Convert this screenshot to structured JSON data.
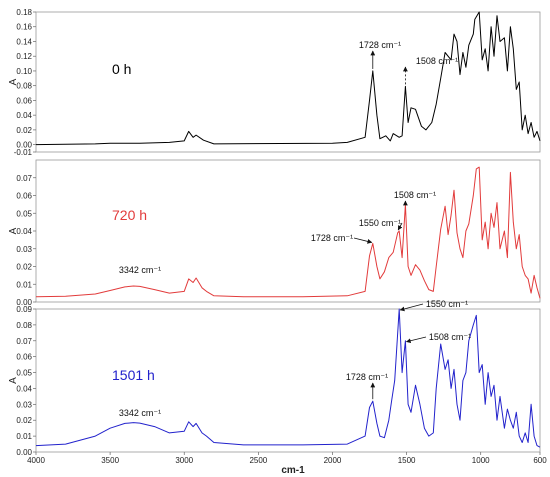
{
  "figure": {
    "xlabel": "cm-1",
    "x_ticks": [
      "4000",
      "3500",
      "3000",
      "2500",
      "2000",
      "1500",
      "1000",
      "600"
    ]
  },
  "chart_data": [
    {
      "type": "line",
      "label": "0 h",
      "color": "#000000",
      "ylabel": "A",
      "xlim": [
        4000,
        600
      ],
      "ylim": [
        -0.01,
        0.18
      ],
      "y_ticks": [
        "0.18",
        "0.16",
        "0.14",
        "0.12",
        "0.10",
        "0.08",
        "0.06",
        "0.04",
        "0.02",
        "0.00",
        "-0.01"
      ],
      "annotations": [
        {
          "text": "1728 cm⁻¹",
          "x": 1728
        },
        {
          "text": "1508 cm⁻¹",
          "x": 1508
        }
      ],
      "x": [
        4000,
        3600,
        3500,
        3300,
        3100,
        3000,
        2970,
        2940,
        2920,
        2870,
        2800,
        2000,
        1900,
        1780,
        1750,
        1728,
        1700,
        1680,
        1640,
        1610,
        1590,
        1550,
        1530,
        1508,
        1490,
        1470,
        1440,
        1400,
        1370,
        1330,
        1300,
        1270,
        1240,
        1200,
        1180,
        1160,
        1140,
        1120,
        1100,
        1080,
        1050,
        1040,
        1010,
        990,
        970,
        950,
        930,
        910,
        890,
        870,
        840,
        820,
        800,
        780,
        760,
        740,
        720,
        700,
        680,
        660,
        640,
        620,
        600
      ],
      "y": [
        0.0,
        0.001,
        0.002,
        0.002,
        0.003,
        0.005,
        0.018,
        0.01,
        0.013,
        0.006,
        0.001,
        0.002,
        0.003,
        0.01,
        0.06,
        0.1,
        0.04,
        0.008,
        0.012,
        0.005,
        0.015,
        0.01,
        0.012,
        0.079,
        0.03,
        0.05,
        0.048,
        0.025,
        0.02,
        0.03,
        0.055,
        0.09,
        0.125,
        0.115,
        0.15,
        0.14,
        0.095,
        0.125,
        0.105,
        0.135,
        0.15,
        0.17,
        0.18,
        0.115,
        0.13,
        0.1,
        0.16,
        0.12,
        0.175,
        0.14,
        0.145,
        0.1,
        0.16,
        0.13,
        0.075,
        0.085,
        0.02,
        0.04,
        0.015,
        0.03,
        0.01,
        0.018,
        0.005
      ]
    },
    {
      "type": "line",
      "label": "720 h",
      "color": "#e23b3b",
      "ylabel": "A",
      "xlim": [
        4000,
        600
      ],
      "ylim": [
        0.0,
        0.08
      ],
      "y_ticks": [
        "0.07",
        "0.06",
        "0.05",
        "0.04",
        "0.03",
        "0.02",
        "0.01",
        "0.00"
      ],
      "annotations": [
        {
          "text": "3342 cm⁻¹",
          "x": 3342
        },
        {
          "text": "1728 cm⁻¹",
          "x": 1728
        },
        {
          "text": "1550 cm⁻¹",
          "x": 1550
        },
        {
          "text": "1508 cm⁻¹",
          "x": 1508
        }
      ],
      "x": [
        4000,
        3800,
        3600,
        3500,
        3400,
        3342,
        3300,
        3200,
        3100,
        3000,
        2970,
        2940,
        2920,
        2880,
        2850,
        2800,
        2600,
        2200,
        1900,
        1780,
        1750,
        1728,
        1700,
        1680,
        1650,
        1620,
        1590,
        1560,
        1550,
        1530,
        1508,
        1490,
        1470,
        1440,
        1410,
        1380,
        1350,
        1320,
        1300,
        1270,
        1240,
        1220,
        1200,
        1180,
        1160,
        1140,
        1120,
        1100,
        1080,
        1050,
        1030,
        1010,
        990,
        970,
        950,
        930,
        910,
        890,
        870,
        840,
        820,
        800,
        780,
        760,
        740,
        720,
        700,
        680,
        660,
        640,
        620,
        600
      ],
      "y": [
        0.003,
        0.0032,
        0.0045,
        0.0065,
        0.0085,
        0.009,
        0.0088,
        0.007,
        0.005,
        0.006,
        0.013,
        0.011,
        0.0135,
        0.008,
        0.006,
        0.0035,
        0.003,
        0.003,
        0.0035,
        0.006,
        0.026,
        0.033,
        0.02,
        0.013,
        0.017,
        0.025,
        0.028,
        0.039,
        0.04,
        0.025,
        0.055,
        0.02,
        0.015,
        0.021,
        0.018,
        0.012,
        0.007,
        0.006,
        0.02,
        0.041,
        0.054,
        0.038,
        0.049,
        0.063,
        0.039,
        0.03,
        0.025,
        0.04,
        0.044,
        0.06,
        0.075,
        0.076,
        0.035,
        0.045,
        0.03,
        0.05,
        0.042,
        0.056,
        0.03,
        0.04,
        0.025,
        0.073,
        0.045,
        0.03,
        0.038,
        0.02,
        0.015,
        0.013,
        0.005,
        0.015,
        0.008,
        0.002
      ]
    },
    {
      "type": "line",
      "label": "1501 h",
      "color": "#2222cc",
      "ylabel": "A",
      "xlim": [
        4000,
        600
      ],
      "ylim": [
        0.0,
        0.09
      ],
      "y_ticks": [
        "0.09",
        "0.08",
        "0.07",
        "0.06",
        "0.05",
        "0.04",
        "0.03",
        "0.02",
        "0.01",
        "0.00"
      ],
      "annotations": [
        {
          "text": "3342 cm⁻¹",
          "x": 3342
        },
        {
          "text": "1728 cm⁻¹",
          "x": 1728
        },
        {
          "text": "1550 cm⁻¹",
          "x": 1550
        },
        {
          "text": "1508 cm⁻¹",
          "x": 1508
        }
      ],
      "x": [
        4000,
        3800,
        3600,
        3500,
        3400,
        3342,
        3300,
        3200,
        3100,
        3000,
        2970,
        2940,
        2920,
        2880,
        2850,
        2800,
        2600,
        2200,
        1900,
        1780,
        1750,
        1728,
        1700,
        1680,
        1650,
        1620,
        1600,
        1580,
        1550,
        1530,
        1508,
        1490,
        1470,
        1440,
        1410,
        1380,
        1350,
        1320,
        1300,
        1270,
        1240,
        1220,
        1200,
        1180,
        1160,
        1140,
        1120,
        1100,
        1080,
        1050,
        1030,
        1010,
        990,
        970,
        950,
        930,
        910,
        890,
        870,
        840,
        820,
        800,
        780,
        760,
        740,
        720,
        700,
        680,
        660,
        640,
        620,
        600
      ],
      "y": [
        0.004,
        0.005,
        0.01,
        0.015,
        0.018,
        0.0185,
        0.0182,
        0.016,
        0.012,
        0.013,
        0.019,
        0.016,
        0.018,
        0.012,
        0.01,
        0.006,
        0.0045,
        0.0045,
        0.005,
        0.01,
        0.028,
        0.032,
        0.018,
        0.01,
        0.009,
        0.02,
        0.033,
        0.045,
        0.09,
        0.05,
        0.07,
        0.03,
        0.025,
        0.042,
        0.03,
        0.015,
        0.01,
        0.012,
        0.04,
        0.068,
        0.052,
        0.058,
        0.04,
        0.052,
        0.03,
        0.02,
        0.045,
        0.05,
        0.07,
        0.08,
        0.086,
        0.05,
        0.055,
        0.03,
        0.05,
        0.035,
        0.042,
        0.02,
        0.035,
        0.015,
        0.027,
        0.02,
        0.015,
        0.025,
        0.01,
        0.006,
        0.012,
        0.006,
        0.03,
        0.01,
        0.004,
        0.003
      ]
    }
  ]
}
